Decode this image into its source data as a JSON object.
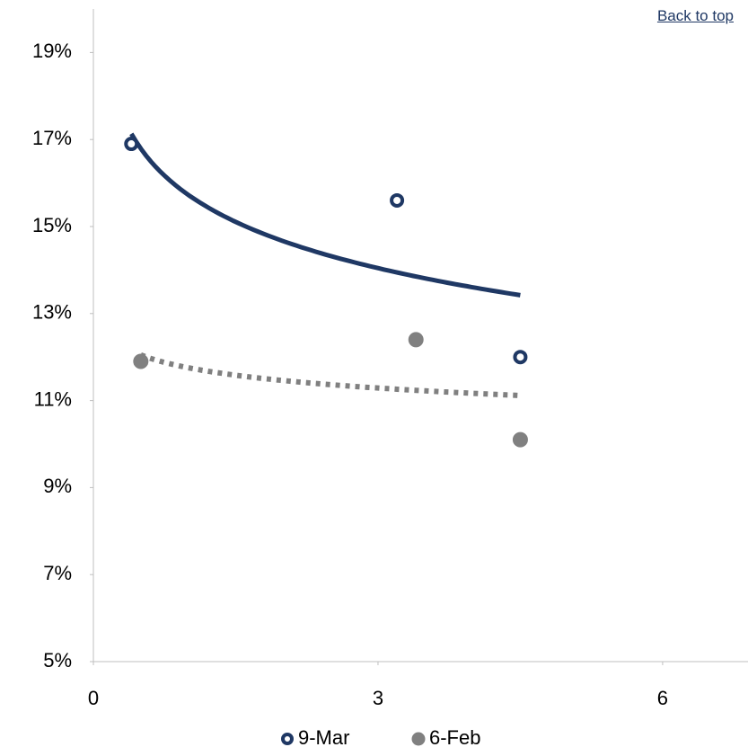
{
  "link": "Back to top",
  "chart_data": {
    "type": "scatter",
    "xlim": [
      0,
      6.9
    ],
    "xticks": [
      0,
      3,
      6
    ],
    "ylim": [
      5,
      20
    ],
    "yticks": [
      {
        "value": 5,
        "label": "5%"
      },
      {
        "value": 7,
        "label": "7%"
      },
      {
        "value": 9,
        "label": "9%"
      },
      {
        "value": 11,
        "label": "11%"
      },
      {
        "value": 13,
        "label": "13%"
      },
      {
        "value": 15,
        "label": "15%"
      },
      {
        "value": 17,
        "label": "17%"
      },
      {
        "value": 19,
        "label": "19%"
      }
    ],
    "grid": false,
    "legend": "bottom",
    "trendline": "logarithmic",
    "series": [
      {
        "name": "9-Mar",
        "color": "#1f3864",
        "marker": "ring",
        "trendline_style": "solid",
        "x": [
          0.4,
          3.2,
          4.5
        ],
        "values": [
          16.9,
          15.6,
          12.0
        ]
      },
      {
        "name": "6-Feb",
        "color": "#808080",
        "marker": "filled",
        "trendline_style": "dotted",
        "x": [
          0.5,
          3.4,
          4.5
        ],
        "values": [
          11.9,
          12.4,
          10.1
        ]
      }
    ]
  }
}
